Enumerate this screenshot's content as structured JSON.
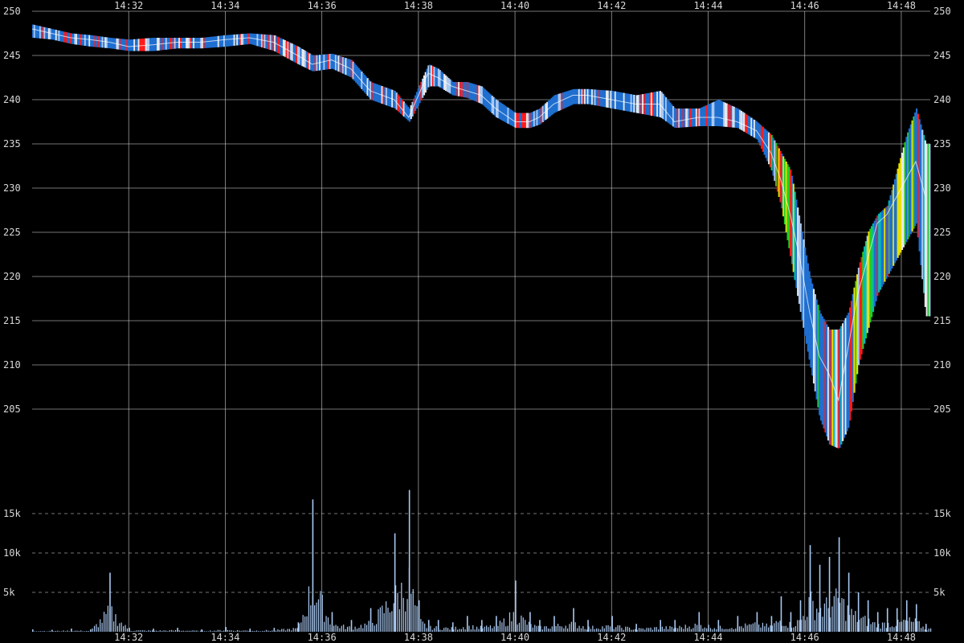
{
  "chart_data": [
    {
      "type": "line",
      "x_ticks": [
        "14:32",
        "14:34",
        "14:36",
        "14:38",
        "14:40",
        "14:42",
        "14:44",
        "14:46",
        "14:48"
      ],
      "y_ticks": [
        250,
        245,
        240,
        235,
        230,
        225,
        220,
        215,
        210,
        205
      ],
      "ylim": [
        198,
        250
      ],
      "xlim_minutes": [
        30.0,
        48.6
      ],
      "grid": true,
      "x": [
        30.0,
        30.4,
        30.8,
        31.2,
        31.6,
        32.0,
        32.5,
        33.0,
        33.5,
        34.0,
        34.5,
        35.0,
        35.5,
        35.8,
        36.2,
        36.6,
        37.0,
        37.5,
        37.8,
        38.0,
        38.2,
        38.4,
        38.7,
        39.0,
        39.3,
        39.6,
        40.0,
        40.3,
        40.5,
        40.8,
        41.2,
        41.5,
        42.0,
        42.5,
        43.0,
        43.3,
        43.8,
        44.2,
        44.6,
        45.0,
        45.3,
        45.5,
        45.7,
        45.9,
        46.1,
        46.3,
        46.5,
        46.7,
        46.9,
        47.1,
        47.3,
        47.5,
        47.7,
        47.9,
        48.1,
        48.3,
        48.5
      ],
      "price": [
        248,
        247.5,
        247,
        246.8,
        246.5,
        246,
        246.2,
        246.5,
        246.5,
        246.8,
        247,
        246.5,
        245,
        244,
        244.5,
        243.5,
        241,
        240,
        238,
        240.5,
        243,
        242.5,
        241.5,
        241,
        240.5,
        239,
        237.5,
        237.5,
        238,
        239.5,
        240.5,
        240.5,
        240,
        239.5,
        239.5,
        237.5,
        238,
        238,
        237.5,
        236.5,
        234,
        231,
        227,
        222,
        216,
        211,
        209,
        206,
        212,
        218,
        222,
        226,
        227,
        229,
        231,
        233,
        229
      ],
      "high": [
        248.5,
        248,
        247.5,
        247.3,
        247,
        246.8,
        247,
        247,
        247,
        247.3,
        247.5,
        247.3,
        246,
        245,
        245.2,
        244.5,
        242,
        241,
        239,
        241.5,
        244,
        243.5,
        242,
        242,
        241.5,
        240,
        238.5,
        238.5,
        239,
        240.5,
        241.2,
        241.2,
        241,
        240.5,
        241,
        239,
        239,
        240,
        239,
        237.5,
        236,
        234,
        232,
        226,
        220,
        216,
        214,
        214,
        216,
        221,
        225,
        227,
        228,
        232,
        236,
        239,
        235
      ],
      "low": [
        247,
        246.8,
        246.3,
        246,
        245.8,
        245.5,
        245.5,
        245.8,
        245.8,
        246,
        246.3,
        245.5,
        244,
        243.2,
        243.5,
        242.5,
        240,
        239,
        237.5,
        239.5,
        241.5,
        241.5,
        240.5,
        240.2,
        239.5,
        238,
        236.8,
        236.8,
        237.2,
        238.5,
        239.5,
        239.5,
        239,
        238.5,
        238,
        236.8,
        237,
        237,
        236.8,
        235.5,
        232,
        228,
        222,
        216,
        210,
        204,
        201,
        200.5,
        203,
        210,
        214,
        218,
        220,
        222,
        224,
        226,
        215.5
      ],
      "volume": [
        0.3,
        0.25,
        0.4,
        0.3,
        7.5,
        0.5,
        0.4,
        0.5,
        0.3,
        0.6,
        0.4,
        0.5,
        1.2,
        16.8,
        2.5,
        1.5,
        3.0,
        12.5,
        18.0,
        4.0,
        1.5,
        1.5,
        1.2,
        2.0,
        1.5,
        2.0,
        6.5,
        2.5,
        1.5,
        2.0,
        3.0,
        1.5,
        2.0,
        1.0,
        1.5,
        1.5,
        2.5,
        1.5,
        2.0,
        2.5,
        2.0,
        4.5,
        2.5,
        4.0,
        11.0,
        8.5,
        9.5,
        12.0,
        7.5,
        5.0,
        4.0,
        2.5,
        3.0,
        3.0,
        4.0,
        3.5,
        1.0
      ],
      "volume_unit": "k",
      "vol_ticks": [
        "15k",
        "10k",
        "5k"
      ],
      "vol_ylim": [
        0,
        20
      ]
    }
  ],
  "colors": {
    "background": "#000000",
    "grid": "#cfcfcf",
    "tick_text": "#d8d8d8",
    "bar_base": "#1f6fd0",
    "bar_up": "#e8e8e8",
    "bar_light": "#a9c8f0",
    "bar_red": "#ff1a1a",
    "bar_green": "#22cc22",
    "bar_yellow": "#e8e000",
    "bar_teal": "#00bbbb",
    "volume": "#a9c8f0",
    "price_line": "#ffffff"
  }
}
